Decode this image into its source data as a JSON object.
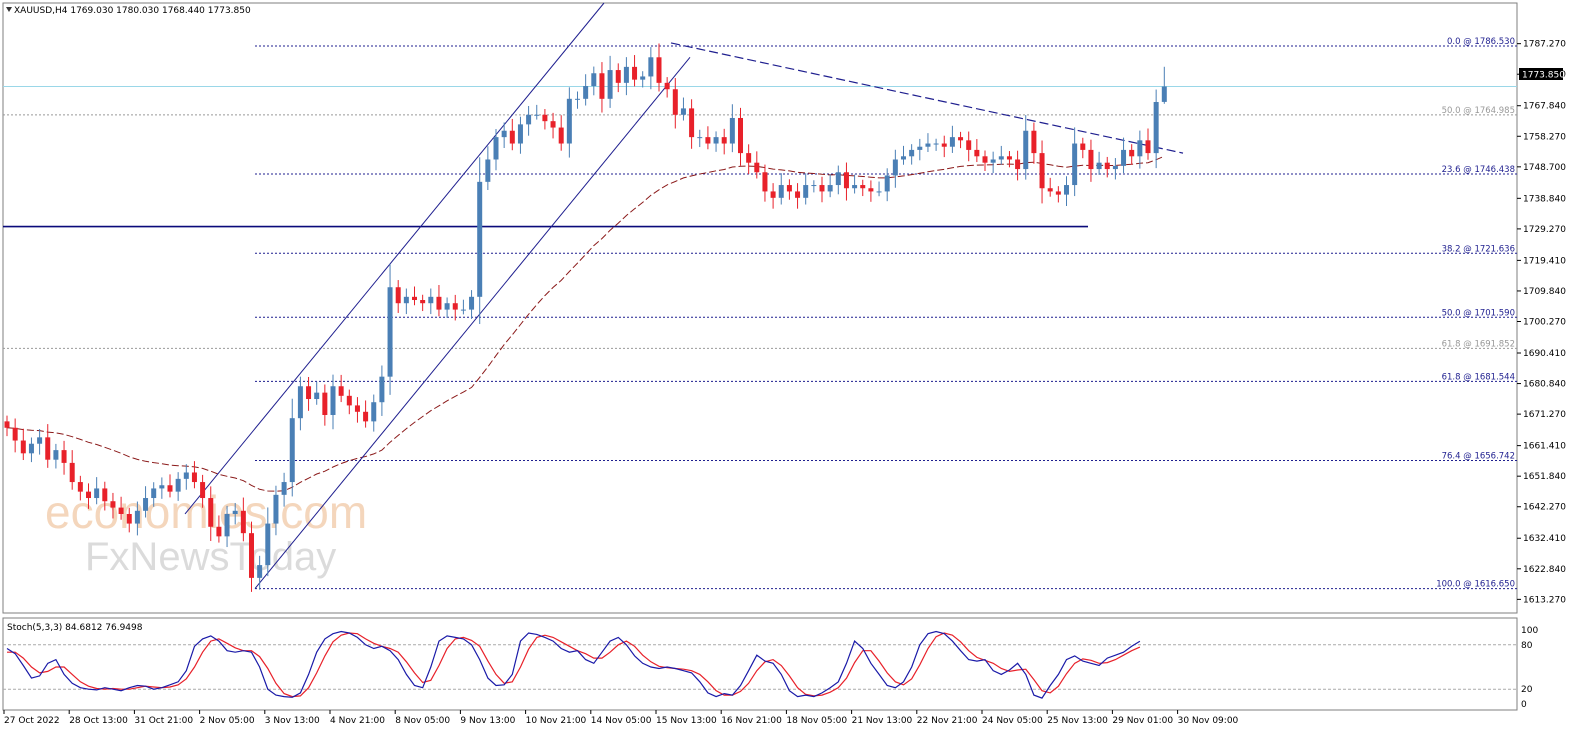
{
  "header": {
    "symbol_line": "XAUUSD,H4  1769.030 1780.030 1768.440 1773.850"
  },
  "price_badge": "1773.850",
  "oscillator": {
    "label": "Stoch(5,3,3) 84.6812 76.9498",
    "levels": [
      {
        "value": 100,
        "text": "100"
      },
      {
        "value": 80,
        "text": "80"
      },
      {
        "value": 20,
        "text": "20"
      },
      {
        "value": 0,
        "text": "0"
      }
    ]
  },
  "watermark": {
    "line1": "economies.com",
    "line2": "FxNewsToday"
  },
  "colors": {
    "bull": "#4a7fb5",
    "bear": "#e8212a",
    "fib_line": "#1f1f8f",
    "channel": "#1f1f8f",
    "ma": "#8b1a1a",
    "stoch_main": "#1a1aa8",
    "stoch_signal": "#e8212a",
    "support": "#0a0a7a",
    "bid_line": "#9ad7e8"
  },
  "fib_levels": [
    {
      "text": "0.0 @ 1786.530",
      "price": 1786.53,
      "color": "#1f1f8f"
    },
    {
      "text": "50.0 @ 1764.985",
      "price": 1764.985,
      "color": "#999999"
    },
    {
      "text": "23.6 @ 1746.438",
      "price": 1746.438,
      "color": "#1f1f8f"
    },
    {
      "text": "38.2 @ 1721.636",
      "price": 1721.636,
      "color": "#1f1f8f"
    },
    {
      "text": "50.0 @ 1701.590",
      "price": 1701.59,
      "color": "#1f1f8f"
    },
    {
      "text": "61.8 @ 1691.852",
      "price": 1691.852,
      "color": "#999999"
    },
    {
      "text": "61.8 @ 1681.544",
      "price": 1681.544,
      "color": "#1f1f8f"
    },
    {
      "text": "76.4 @ 1656.742",
      "price": 1656.742,
      "color": "#1f1f8f"
    },
    {
      "text": "100.0 @ 1616.650",
      "price": 1616.65,
      "color": "#1f1f8f"
    }
  ],
  "chart_data": {
    "type": "candlestick",
    "title": "XAUUSD,H4",
    "ohlc_last": {
      "open": 1769.03,
      "high": 1780.03,
      "low": 1768.44,
      "close": 1773.85
    },
    "y_ticks": [
      "1787.270",
      "1777.700",
      "1767.840",
      "1758.270",
      "1748.700",
      "1738.840",
      "1729.270",
      "1719.410",
      "1709.840",
      "1700.270",
      "1690.410",
      "1680.840",
      "1671.270",
      "1661.410",
      "1651.840",
      "1642.270",
      "1632.410",
      "1622.840",
      "1613.270"
    ],
    "y_tick_values": [
      1787.27,
      1777.7,
      1767.84,
      1758.27,
      1748.7,
      1738.84,
      1729.27,
      1719.41,
      1709.84,
      1700.27,
      1690.41,
      1680.84,
      1671.27,
      1661.41,
      1651.84,
      1642.27,
      1632.41,
      1622.84,
      1613.27
    ],
    "x_ticks": [
      "27 Oct 2022",
      "28 Oct 13:00",
      "31 Oct 21:00",
      "2 Nov 05:00",
      "3 Nov 13:00",
      "4 Nov 21:00",
      "8 Nov 05:00",
      "9 Nov 13:00",
      "10 Nov 21:00",
      "14 Nov 05:00",
      "15 Nov 13:00",
      "16 Nov 21:00",
      "18 Nov 05:00",
      "21 Nov 13:00",
      "22 Nov 21:00",
      "24 Nov 05:00",
      "25 Nov 13:00",
      "29 Nov 01:00",
      "30 Nov 09:00"
    ],
    "x_tick_bars": [
      0,
      8,
      16,
      24,
      32,
      40,
      48,
      56,
      64,
      72,
      80,
      88,
      96,
      104,
      112,
      120,
      128,
      136,
      144
    ],
    "horizontal_support": 1730.0,
    "bid": 1773.85,
    "closes": [
      1667,
      1663,
      1659,
      1662,
      1664,
      1657,
      1660,
      1656,
      1650,
      1647,
      1645,
      1648,
      1644,
      1642,
      1640,
      1637,
      1641,
      1645,
      1648,
      1649,
      1647,
      1651,
      1653,
      1650,
      1645,
      1636,
      1633,
      1640,
      1641,
      1634,
      1620,
      1624,
      1637,
      1646,
      1650,
      1670,
      1680,
      1676,
      1678,
      1671,
      1680,
      1677,
      1674,
      1672,
      1669,
      1675,
      1683,
      1711,
      1706,
      1708,
      1707,
      1706,
      1708,
      1704,
      1706,
      1704,
      1704,
      1708,
      1744,
      1751,
      1758,
      1760,
      1756,
      1762,
      1765,
      1765,
      1763,
      1761,
      1756,
      1770,
      1770,
      1774,
      1778,
      1770,
      1779,
      1775,
      1780,
      1776,
      1777,
      1783,
      1775,
      1773,
      1765,
      1767,
      1758,
      1758,
      1756,
      1758,
      1756,
      1764,
      1753,
      1750,
      1747,
      1741,
      1739,
      1743,
      1741,
      1739,
      1743,
      1743,
      1741,
      1743,
      1747,
      1742,
      1743,
      1742,
      1741,
      1741,
      1746,
      1751,
      1752,
      1754,
      1755,
      1756,
      1756,
      1755,
      1758,
      1757,
      1754,
      1752,
      1750,
      1751,
      1752,
      1751,
      1748,
      1760,
      1753,
      1742,
      1741,
      1740,
      1743,
      1756,
      1754,
      1748,
      1750,
      1748,
      1749,
      1754,
      1752,
      1757,
      1753,
      1769,
      1773.85
    ],
    "stoch_main": [
      75,
      68,
      52,
      35,
      38,
      55,
      60,
      40,
      28,
      22,
      20,
      19,
      22,
      20,
      18,
      22,
      25,
      24,
      20,
      22,
      26,
      30,
      45,
      78,
      88,
      92,
      85,
      72,
      70,
      72,
      70,
      50,
      20,
      12,
      10,
      9,
      15,
      40,
      70,
      88,
      95,
      98,
      96,
      90,
      80,
      75,
      78,
      72,
      60,
      40,
      25,
      22,
      50,
      85,
      92,
      90,
      88,
      80,
      60,
      35,
      25,
      26,
      40,
      85,
      96,
      94,
      90,
      85,
      75,
      70,
      72,
      60,
      55,
      70,
      85,
      90,
      80,
      65,
      55,
      50,
      48,
      50,
      48,
      45,
      42,
      30,
      15,
      10,
      14,
      12,
      25,
      45,
      66,
      58,
      55,
      40,
      18,
      10,
      12,
      10,
      15,
      22,
      30,
      55,
      85,
      75,
      55,
      40,
      25,
      22,
      30,
      50,
      80,
      95,
      98,
      95,
      85,
      72,
      60,
      58,
      60,
      45,
      40,
      46,
      55,
      40,
      12,
      8,
      25,
      40,
      60,
      65,
      58,
      55,
      52,
      62,
      66,
      70,
      78,
      84.68
    ],
    "stoch_signal": [
      70,
      70,
      62,
      50,
      42,
      44,
      50,
      50,
      40,
      30,
      24,
      21,
      20,
      21,
      20,
      20,
      22,
      24,
      23,
      22,
      23,
      26,
      34,
      50,
      70,
      85,
      88,
      82,
      76,
      72,
      72,
      64,
      48,
      28,
      14,
      10,
      11,
      22,
      42,
      65,
      84,
      93,
      96,
      95,
      88,
      82,
      78,
      75,
      70,
      57,
      42,
      29,
      32,
      52,
      75,
      88,
      90,
      86,
      78,
      58,
      40,
      28,
      30,
      50,
      74,
      90,
      93,
      90,
      84,
      78,
      72,
      68,
      62,
      62,
      70,
      80,
      85,
      78,
      66,
      57,
      51,
      49,
      48,
      47,
      45,
      40,
      30,
      18,
      12,
      12,
      17,
      28,
      45,
      57,
      60,
      52,
      38,
      22,
      13,
      11,
      12,
      16,
      22,
      35,
      56,
      72,
      72,
      58,
      42,
      30,
      26,
      34,
      53,
      75,
      91,
      96,
      93,
      84,
      72,
      63,
      59,
      55,
      48,
      44,
      46,
      47,
      33,
      18,
      15,
      24,
      41,
      55,
      61,
      59,
      55,
      56,
      60,
      66,
      72,
      76.95
    ]
  }
}
